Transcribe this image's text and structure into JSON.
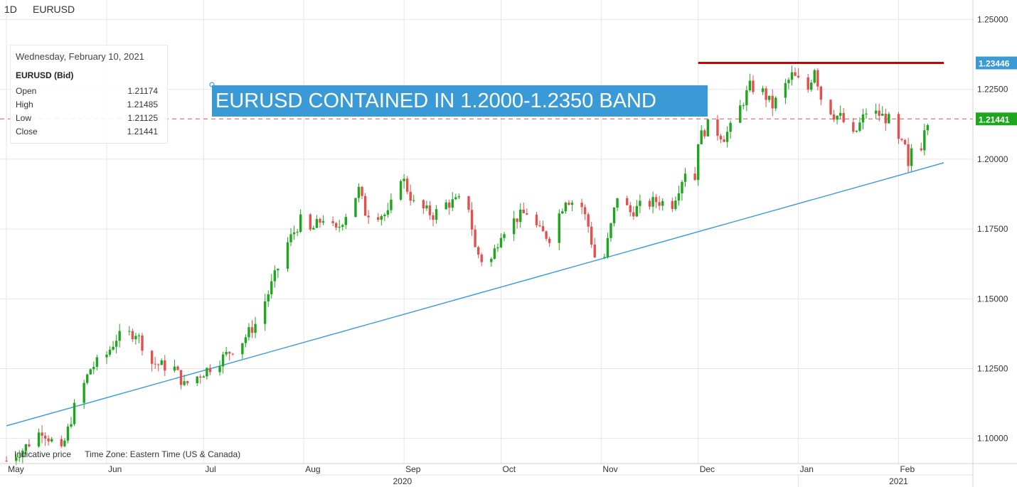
{
  "header": {
    "interval": "1D",
    "symbol": "EURUSD"
  },
  "info_box": {
    "date": "Wednesday, February 10, 2021",
    "symbol_label": "EURUSD (Bid)",
    "rows": [
      {
        "label": "Open",
        "value": "1.21174"
      },
      {
        "label": "High",
        "value": "1.21485"
      },
      {
        "label": "Low",
        "value": "1.21125"
      },
      {
        "label": "Close",
        "value": "1.21441"
      }
    ]
  },
  "banner_text": "EURUSD CONTAINED IN 1.2000-1.2350 BAND",
  "footer": {
    "indicative": "Indicative price",
    "timezone": "Time Zone: Eastern Time (US & Canada)"
  },
  "colors": {
    "up": "#1ea61e",
    "down": "#e35050",
    "trendline": "#3a9ad6",
    "resistance": "#cc0000",
    "last_price": "#e35050",
    "grid": "#e6e6e6"
  },
  "chart_data": {
    "type": "candlestick",
    "title": "EURUSD",
    "interval": "1D",
    "ylim": [
      1.091,
      1.257
    ],
    "y_ticks": [
      "1.10000",
      "1.12500",
      "1.15000",
      "1.17500",
      "1.20000",
      "1.22500",
      "1.25000"
    ],
    "months": [
      "May",
      "Jun",
      "Jul",
      "Aug",
      "Sep",
      "Oct",
      "Nov",
      "Dec",
      "Jan",
      "Feb"
    ],
    "years": [
      "2020",
      "2021"
    ],
    "price_tags": [
      {
        "label": "1.23446",
        "value": 1.23446,
        "kind": "resistance"
      },
      {
        "label": "1.21441",
        "value": 1.21441,
        "kind": "last"
      }
    ],
    "resistance": {
      "value": 1.23446,
      "from": "2020-12-01",
      "to": "2021-02-15"
    },
    "trendline": {
      "from": [
        "2020-05-01",
        1.1045
      ],
      "to": [
        "2021-02-15",
        1.1987
      ]
    },
    "keypoints": [
      [
        "2020-05-01",
        1.092
      ],
      [
        "2020-05-06",
        1.096
      ],
      [
        "2020-05-12",
        1.103
      ],
      [
        "2020-05-18",
        1.095
      ],
      [
        "2020-05-22",
        1.111
      ],
      [
        "2020-05-27",
        1.125
      ],
      [
        "2020-06-01",
        1.13
      ],
      [
        "2020-06-04",
        1.136
      ],
      [
        "2020-06-10",
        1.138
      ],
      [
        "2020-06-15",
        1.127
      ],
      [
        "2020-06-22",
        1.125
      ],
      [
        "2020-06-25",
        1.119
      ],
      [
        "2020-06-30",
        1.123
      ],
      [
        "2020-07-06",
        1.128
      ],
      [
        "2020-07-13",
        1.135
      ],
      [
        "2020-07-17",
        1.141
      ],
      [
        "2020-07-21",
        1.152
      ],
      [
        "2020-07-27",
        1.17
      ],
      [
        "2020-07-31",
        1.178
      ],
      [
        "2020-08-03",
        1.174
      ],
      [
        "2020-08-07",
        1.179
      ],
      [
        "2020-08-11",
        1.174
      ],
      [
        "2020-08-18",
        1.189
      ],
      [
        "2020-08-20",
        1.181
      ],
      [
        "2020-08-27",
        1.18
      ],
      [
        "2020-08-31",
        1.194
      ],
      [
        "2020-09-01",
        1.192
      ],
      [
        "2020-09-04",
        1.184
      ],
      [
        "2020-09-10",
        1.18
      ],
      [
        "2020-09-14",
        1.184
      ],
      [
        "2020-09-18",
        1.185
      ],
      [
        "2020-09-21",
        1.183
      ],
      [
        "2020-09-23",
        1.168
      ],
      [
        "2020-09-25",
        1.164
      ],
      [
        "2020-09-28",
        1.164
      ],
      [
        "2020-10-01",
        1.174
      ],
      [
        "2020-10-06",
        1.179
      ],
      [
        "2020-10-09",
        1.181
      ],
      [
        "2020-10-13",
        1.174
      ],
      [
        "2020-10-16",
        1.172
      ],
      [
        "2020-10-21",
        1.186
      ],
      [
        "2020-10-26",
        1.183
      ],
      [
        "2020-10-28",
        1.176
      ],
      [
        "2020-10-30",
        1.165
      ],
      [
        "2020-11-02",
        1.165
      ],
      [
        "2020-11-06",
        1.187
      ],
      [
        "2020-11-10",
        1.181
      ],
      [
        "2020-11-13",
        1.183
      ],
      [
        "2020-11-18",
        1.185
      ],
      [
        "2020-11-23",
        1.184
      ],
      [
        "2020-11-27",
        1.196
      ],
      [
        "2020-11-30",
        1.193
      ],
      [
        "2020-12-01",
        1.207
      ],
      [
        "2020-12-04",
        1.212
      ],
      [
        "2020-12-09",
        1.208
      ],
      [
        "2020-12-11",
        1.211
      ],
      [
        "2020-12-17",
        1.226
      ],
      [
        "2020-12-21",
        1.224
      ],
      [
        "2020-12-24",
        1.219
      ],
      [
        "2020-12-30",
        1.23
      ],
      [
        "2021-01-04",
        1.225
      ],
      [
        "2021-01-06",
        1.233
      ],
      [
        "2021-01-08",
        1.222
      ],
      [
        "2021-01-12",
        1.216
      ],
      [
        "2021-01-14",
        1.215
      ],
      [
        "2021-01-18",
        1.208
      ],
      [
        "2021-01-22",
        1.217
      ],
      [
        "2021-01-26",
        1.216
      ],
      [
        "2021-01-29",
        1.214
      ],
      [
        "2021-02-01",
        1.206
      ],
      [
        "2021-02-03",
        1.204
      ],
      [
        "2021-02-04",
        1.196
      ],
      [
        "2021-02-05",
        1.204
      ],
      [
        "2021-02-08",
        1.205
      ],
      [
        "2021-02-09",
        1.212
      ],
      [
        "2021-02-10",
        1.21441
      ]
    ]
  }
}
